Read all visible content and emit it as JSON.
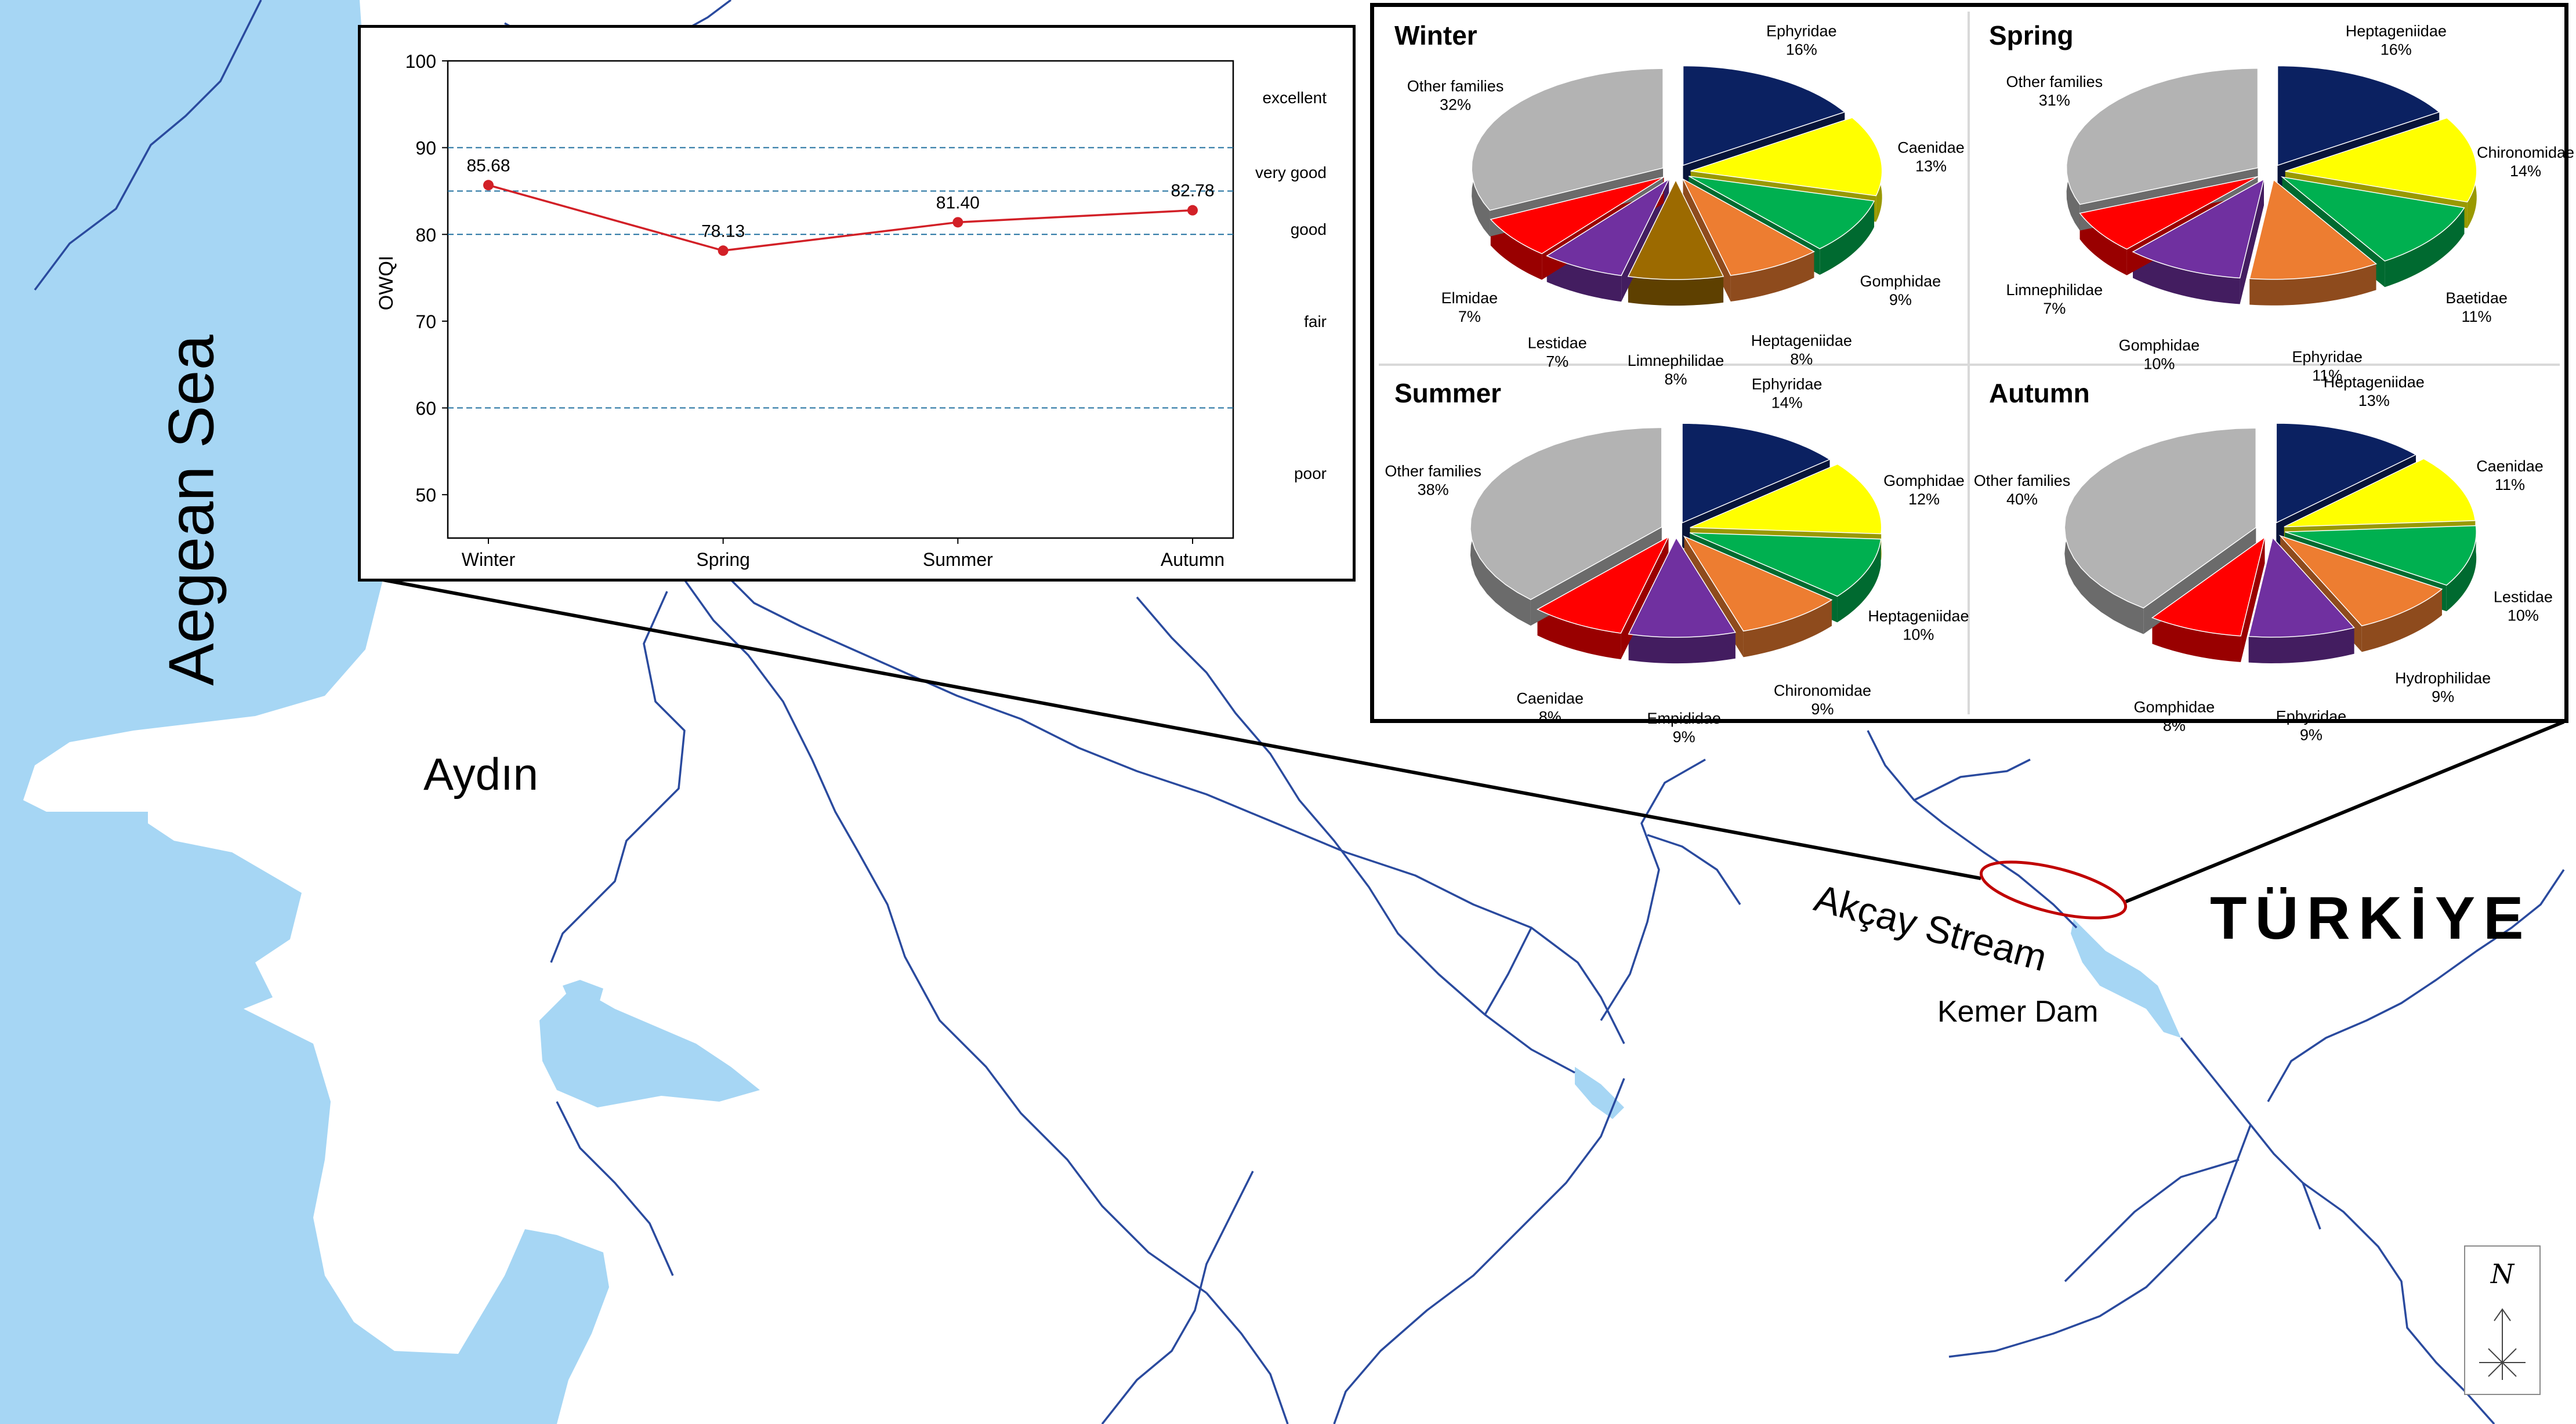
{
  "map": {
    "labels": {
      "sea": "Aegean Sea",
      "city": "Aydın",
      "country": "TÜRKİYE",
      "stream": "Akçay Stream",
      "dam": "Kemer Dam"
    },
    "compass_letter": "N",
    "colors": {
      "water": "#a6d6f4",
      "river": "#2a4a9e",
      "land": "#ffffff",
      "marker": "#c00000"
    }
  },
  "owqi_chart": {
    "ylabel": "OWQI",
    "categories": [
      "Winter",
      "Spring",
      "Summer",
      "Autumn"
    ],
    "values": [
      85.68,
      78.13,
      81.4,
      82.78
    ],
    "value_labels": [
      "85.68",
      "78.13",
      "81.40",
      "82.78"
    ],
    "yticks": [
      "100",
      "90",
      "80",
      "70",
      "60",
      "50"
    ],
    "class_labels": [
      "excellent",
      "very good",
      "good",
      "fair",
      "poor"
    ],
    "line_color": "#d22027"
  },
  "chart_data": [
    {
      "type": "line",
      "title": "",
      "xlabel": "",
      "ylabel": "OWQI",
      "categories": [
        "Winter",
        "Spring",
        "Summer",
        "Autumn"
      ],
      "series": [
        {
          "values": [
            85.68,
            78.13,
            81.4,
            82.78
          ]
        }
      ],
      "ylim": [
        45,
        100
      ],
      "class_thresholds": [
        90,
        85,
        80,
        60
      ],
      "class_labels": [
        "excellent",
        "very good",
        "good",
        "fair",
        "poor"
      ],
      "grid": false
    },
    {
      "type": "pie",
      "title": "Winter",
      "slices": [
        {
          "label": "Ephyridae",
          "value": 16,
          "text": "16%",
          "color": "#0b2161"
        },
        {
          "label": "Caenidae",
          "value": 13,
          "text": "13%",
          "color": "#ffff00"
        },
        {
          "label": "Gomphidae",
          "value": 9,
          "text": "9%",
          "color": "#00b050"
        },
        {
          "label": "Heptageniidae",
          "value": 8,
          "text": "8%",
          "color": "#ed7d31"
        },
        {
          "label": "Limnephilidae",
          "value": 8,
          "text": "8%",
          "color": "#9c6a00"
        },
        {
          "label": "Lestidae",
          "value": 7,
          "text": "7%",
          "color": "#7030a0"
        },
        {
          "label": "Elmidae",
          "value": 7,
          "text": "7%",
          "color": "#ff0000"
        },
        {
          "label": "Other families",
          "value": 32,
          "text": "32%",
          "color": "#b3b3b3"
        }
      ]
    },
    {
      "type": "pie",
      "title": "Spring",
      "slices": [
        {
          "label": "Heptageniidae",
          "value": 16,
          "text": "16%",
          "color": "#0b2161"
        },
        {
          "label": "Chironomidae",
          "value": 14,
          "text": "14%",
          "color": "#ffff00"
        },
        {
          "label": "Baetidae",
          "value": 11,
          "text": "11%",
          "color": "#00b050"
        },
        {
          "label": "Ephyridae",
          "value": 11,
          "text": "11%",
          "color": "#ed7d31"
        },
        {
          "label": "Gomphidae",
          "value": 10,
          "text": "10%",
          "color": "#7030a0"
        },
        {
          "label": "Limnephilidae",
          "value": 7,
          "text": "7%",
          "color": "#ff0000"
        },
        {
          "label": "Other families",
          "value": 31,
          "text": "31%",
          "color": "#b3b3b3"
        }
      ]
    },
    {
      "type": "pie",
      "title": "Summer",
      "slices": [
        {
          "label": "Ephyridae",
          "value": 14,
          "text": "14%",
          "color": "#0b2161"
        },
        {
          "label": "Gomphidae",
          "value": 12,
          "text": "12%",
          "color": "#ffff00"
        },
        {
          "label": "Heptageniidae",
          "value": 10,
          "text": "10%",
          "color": "#00b050"
        },
        {
          "label": "Chironomidae",
          "value": 9,
          "text": "9%",
          "color": "#ed7d31"
        },
        {
          "label": "Empididae",
          "value": 9,
          "text": "9%",
          "color": "#7030a0"
        },
        {
          "label": "Caenidae",
          "value": 8,
          "text": "8%",
          "color": "#ff0000"
        },
        {
          "label": "Other families",
          "value": 38,
          "text": "38%",
          "color": "#b3b3b3"
        }
      ]
    },
    {
      "type": "pie",
      "title": "Autumn",
      "slices": [
        {
          "label": "Heptageniidae",
          "value": 13,
          "text": "13%",
          "color": "#0b2161"
        },
        {
          "label": "Caenidae",
          "value": 11,
          "text": "11%",
          "color": "#ffff00"
        },
        {
          "label": "Lestidae",
          "value": 10,
          "text": "10%",
          "color": "#00b050"
        },
        {
          "label": "Hydrophilidae",
          "value": 9,
          "text": "9%",
          "color": "#ed7d31"
        },
        {
          "label": "Ephyridae",
          "value": 9,
          "text": "9%",
          "color": "#7030a0"
        },
        {
          "label": "Gomphidae",
          "value": 8,
          "text": "8%",
          "color": "#ff0000"
        },
        {
          "label": "Other families",
          "value": 40,
          "text": "40%",
          "color": "#b3b3b3"
        }
      ]
    }
  ]
}
